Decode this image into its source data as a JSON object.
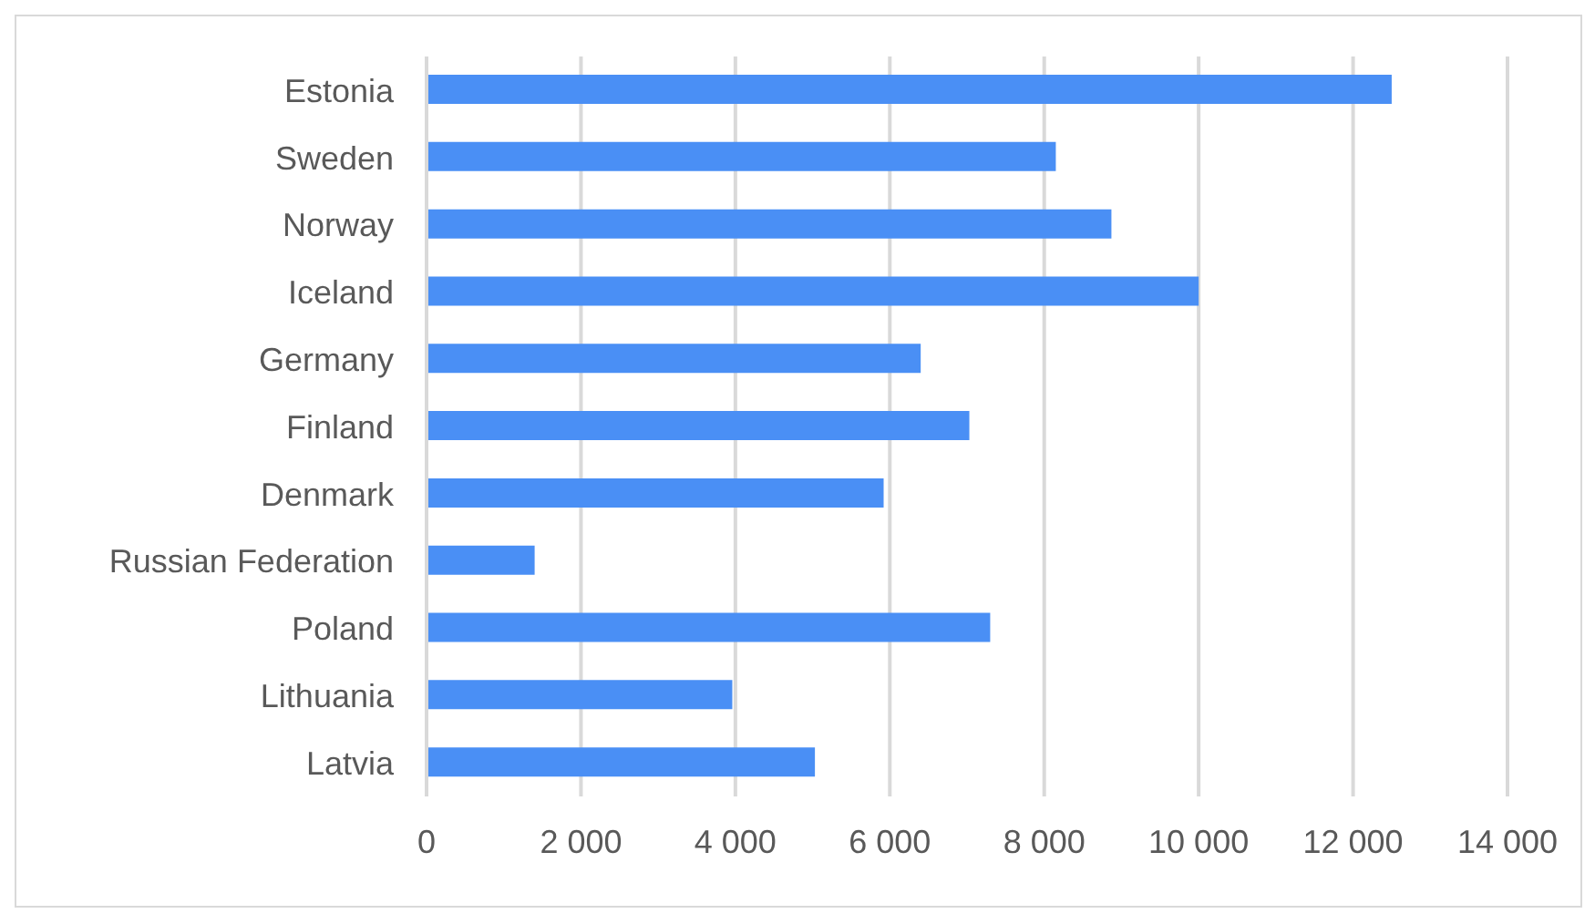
{
  "chart_data": {
    "type": "bar",
    "orientation": "horizontal",
    "categories": [
      "Estonia",
      "Sweden",
      "Norway",
      "Iceland",
      "Germany",
      "Finland",
      "Denmark",
      "Russian Federation",
      "Poland",
      "Lithuania",
      "Latvia"
    ],
    "values": [
      12500,
      8150,
      8870,
      10000,
      6400,
      7030,
      5920,
      1400,
      7300,
      3960,
      5030
    ],
    "color": "#4a8ff5",
    "xlim": [
      0,
      14000
    ],
    "xticks": [
      0,
      {
        "value": 2000,
        "label": "2 000"
      },
      {
        "value": 4000,
        "label": "4 000"
      },
      {
        "value": 6000,
        "label": "6 000"
      },
      {
        "value": 8000,
        "label": "8 000"
      },
      {
        "value": 10000,
        "label": "10 000"
      },
      {
        "value": 12000,
        "label": "12 000"
      },
      {
        "value": 14000,
        "label": "14 000"
      }
    ],
    "grid": "x"
  }
}
